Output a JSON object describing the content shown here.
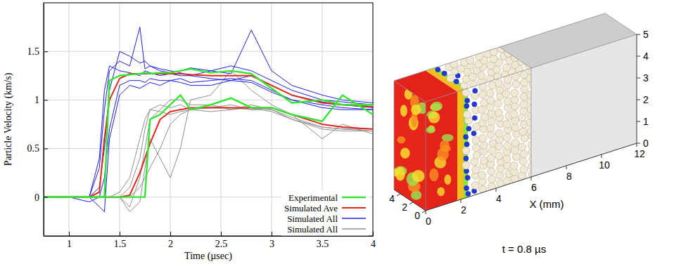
{
  "chart_data": [
    {
      "type": "line",
      "xlabel": "Time (µsec)",
      "ylabel": "Particle Velocity (km/s)",
      "xlim": [
        0.75,
        4
      ],
      "xticks": [
        1,
        1.5,
        2,
        2.5,
        3,
        3.5,
        4
      ],
      "ylim": [
        -0.4,
        2
      ],
      "yticks": [
        0,
        0.5,
        1,
        1.5
      ],
      "grid": true,
      "legend": "lower right",
      "x": [
        0.75,
        1.0,
        1.2,
        1.3,
        1.35,
        1.4,
        1.5,
        1.6,
        1.7,
        1.75,
        1.8,
        1.9,
        2.0,
        2.1,
        2.2,
        2.4,
        2.6,
        2.8,
        3.0,
        3.2,
        3.5,
        3.7,
        4.0
      ],
      "series": [
        {
          "name": "Experimental",
          "color": "#33e633",
          "values": [
            0,
            0,
            0,
            0,
            0,
            1.2,
            1.25,
            1.26,
            1.27,
            1.28,
            1.27,
            1.28,
            1.28,
            1.3,
            1.32,
            1.28,
            1.3,
            1.27,
            1.12,
            0.97,
            1.0,
            0.95,
            0.95
          ]
        },
        {
          "name": "Experimental",
          "color": "#33e633",
          "values": [
            0,
            0,
            0,
            0,
            0,
            0,
            0,
            0,
            0,
            0,
            0.8,
            0.85,
            0.95,
            1.05,
            0.9,
            0.95,
            1.02,
            0.92,
            0.92,
            0.85,
            0.78,
            1.05,
            0.85
          ]
        },
        {
          "name": "Simulated Ave",
          "color": "#e3271b",
          "values": [
            0,
            0,
            0,
            0.05,
            0.6,
            1.0,
            1.22,
            1.27,
            1.27,
            1.27,
            1.27,
            1.27,
            1.27,
            1.27,
            1.26,
            1.25,
            1.25,
            1.25,
            1.15,
            1.05,
            0.97,
            0.95,
            0.93
          ]
        },
        {
          "name": "Simulated Ave",
          "color": "#e3271b",
          "values": [
            0,
            0,
            0,
            0,
            0,
            0,
            0,
            0.02,
            0.25,
            0.4,
            0.55,
            0.8,
            0.88,
            0.9,
            0.92,
            0.92,
            0.92,
            0.92,
            0.92,
            0.85,
            0.75,
            0.72,
            0.7
          ]
        },
        {
          "name": "Simulated All",
          "color": "#1f1fe0",
          "values": [
            0,
            0,
            0,
            0.3,
            0.9,
            1.3,
            1.4,
            1.35,
            1.75,
            1.32,
            1.35,
            1.3,
            1.28,
            1.3,
            1.33,
            1.3,
            1.35,
            1.3,
            1.2,
            1.1,
            1.0,
            0.98,
            0.95
          ]
        },
        {
          "name": "Simulated All",
          "color": "#1f1fe0",
          "values": [
            0,
            0,
            0,
            0.1,
            0.5,
            1.1,
            1.5,
            1.45,
            1.38,
            1.4,
            1.35,
            1.32,
            1.3,
            1.28,
            1.25,
            1.3,
            1.27,
            1.72,
            1.3,
            1.15,
            1.05,
            1.0,
            0.97
          ]
        },
        {
          "name": "Simulated All",
          "color": "#1f1fe0",
          "values": [
            0,
            0,
            -0.05,
            0,
            0.2,
            0.7,
            1.15,
            1.2,
            1.2,
            1.18,
            1.22,
            1.2,
            1.2,
            1.22,
            1.18,
            1.2,
            1.22,
            1.2,
            1.1,
            1.0,
            0.95,
            0.92,
            0.9
          ]
        },
        {
          "name": "Simulated All",
          "color": "#1f1fe0",
          "values": [
            0,
            0,
            0,
            0.4,
            1.1,
            1.35,
            1.3,
            1.28,
            1.25,
            1.3,
            1.28,
            1.25,
            1.27,
            1.25,
            1.25,
            1.22,
            1.2,
            1.25,
            1.15,
            1.05,
            0.98,
            0.95,
            0.92
          ]
        },
        {
          "name": "Simulated All",
          "color": "#1f1fe0",
          "values": [
            0,
            0,
            0,
            -0.1,
            -0.15,
            0.6,
            1.05,
            1.15,
            1.12,
            1.15,
            1.18,
            1.15,
            1.2,
            1.18,
            1.15,
            1.15,
            1.2,
            1.18,
            1.08,
            1.0,
            0.92,
            0.9,
            0.9
          ]
        },
        {
          "name": "Simulated All",
          "color": "#8f8f8f",
          "values": [
            0,
            0,
            0,
            0,
            0,
            0,
            0,
            0.1,
            0.4,
            0.7,
            0.9,
            0.95,
            0.92,
            0.95,
            0.9,
            0.93,
            0.92,
            0.9,
            0.92,
            0.85,
            0.75,
            0.72,
            0.7
          ]
        },
        {
          "name": "Simulated All",
          "color": "#8f8f8f",
          "values": [
            0,
            0,
            0,
            0,
            0,
            0,
            0,
            -0.1,
            0.2,
            0.5,
            0.8,
            0.9,
            1.0,
            1.0,
            0.95,
            0.95,
            0.9,
            0.95,
            0.9,
            0.8,
            0.7,
            0.68,
            0.68
          ]
        },
        {
          "name": "Simulated All",
          "color": "#8f8f8f",
          "values": [
            0,
            0,
            0,
            0,
            0,
            0,
            0.05,
            0.2,
            0.6,
            0.8,
            0.9,
            0.88,
            0.85,
            0.88,
            0.9,
            0.88,
            0.9,
            0.92,
            0.88,
            0.8,
            0.72,
            0.7,
            0.68
          ]
        },
        {
          "name": "Simulated All",
          "color": "#8f8f8f",
          "values": [
            0,
            0,
            0,
            0,
            0,
            0,
            0,
            0,
            0.1,
            0.2,
            0.3,
            0.5,
            0.75,
            0.85,
            0.9,
            0.92,
            0.95,
            0.9,
            0.9,
            0.82,
            0.72,
            0.7,
            0.7
          ]
        },
        {
          "name": "Simulated All",
          "color": "#8f8f8f",
          "values": [
            0,
            0,
            0,
            0,
            0,
            0,
            0,
            -0.15,
            -0.05,
            0.3,
            0.6,
            0.4,
            0.2,
            0.5,
            1.0,
            1.05,
            1.3,
            1.1,
            0.95,
            0.85,
            0.6,
            0.75,
            0.65
          ]
        }
      ]
    },
    {
      "type": "3d",
      "xlabel": "X (mm)",
      "xlim": [
        0,
        12
      ],
      "xticks": [
        0,
        2,
        4,
        6,
        8,
        10,
        12
      ],
      "ylim": [
        0,
        5
      ],
      "yticks": [
        0,
        2,
        4
      ],
      "zlim": [
        0,
        5
      ],
      "zticks": [
        0,
        1,
        2,
        3,
        4,
        5
      ],
      "caption": "t = 0.8 µs"
    }
  ]
}
